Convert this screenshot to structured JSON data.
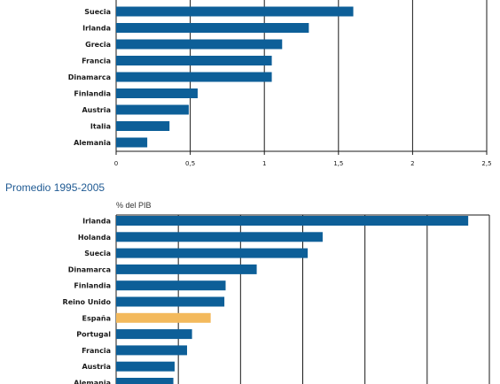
{
  "colors": {
    "bar": "#0d5f98",
    "highlight": "#f3b95c",
    "grid": "#1a1a1a"
  },
  "chart_data": [
    {
      "type": "bar",
      "orientation": "horizontal",
      "title": "",
      "xlabel": "",
      "ylabel": "",
      "categories": [
        "Suecia",
        "Irlanda",
        "Grecia",
        "Francia",
        "Dinamarca",
        "Finlandia",
        "Austria",
        "Italia",
        "Alemania"
      ],
      "values": [
        1.6,
        1.3,
        1.12,
        1.05,
        1.05,
        0.55,
        0.49,
        0.36,
        0.21
      ],
      "xlim": [
        0,
        2.5
      ],
      "ticks": [
        "0",
        "0,5",
        "1",
        "1,5",
        "2",
        "2,5"
      ],
      "grid": true
    },
    {
      "type": "bar",
      "orientation": "horizontal",
      "title": "Promedio 1995-2005",
      "unit_label": "% del PIB",
      "xlabel": "",
      "ylabel": "",
      "categories": [
        "Irlanda",
        "Holanda",
        "Suecia",
        "Dinamarca",
        "Finlandia",
        "Reino Unido",
        "España",
        "Portugal",
        "Francia",
        "Austria",
        "Alemania"
      ],
      "values": [
        2.83,
        1.66,
        1.54,
        1.13,
        0.88,
        0.87,
        0.76,
        0.61,
        0.57,
        0.47,
        0.46
      ],
      "highlight": "España",
      "xlim": [
        0,
        3.0
      ],
      "grid": true
    }
  ]
}
